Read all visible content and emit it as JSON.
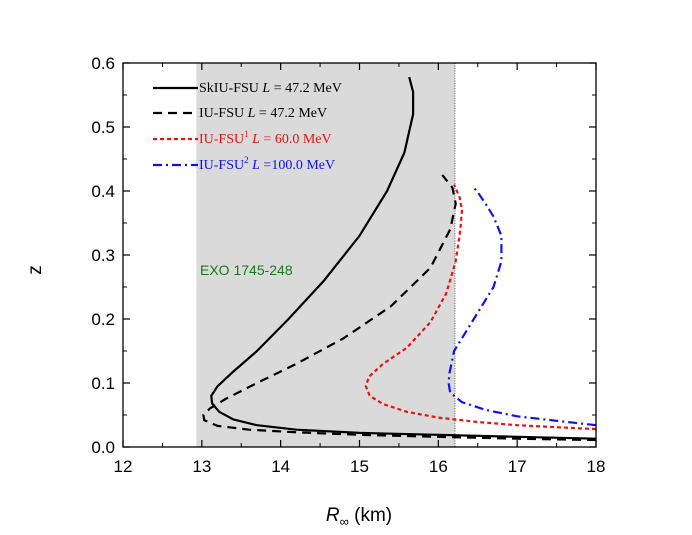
{
  "chart_data": {
    "type": "line",
    "title": "",
    "xlabel": "R",
    "xlabel_subscript": "∞",
    "xlabel_unit": " (km)",
    "ylabel": "z",
    "xlim": [
      12,
      18
    ],
    "ylim": [
      0.0,
      0.6
    ],
    "xticks": [
      "12",
      "13",
      "14",
      "15",
      "16",
      "17",
      "18"
    ],
    "yticks": [
      "0.0",
      "0.1",
      "0.2",
      "0.3",
      "0.4",
      "0.5",
      "0.6"
    ],
    "grid": false,
    "legend_position": "top-left",
    "shaded_region": {
      "x": [
        12.93,
        16.21
      ],
      "label": "EXO 1745-248",
      "label_color": "#1a7a1a"
    },
    "series": [
      {
        "name": "SkIU-FSU",
        "label_prefix": "SkIU-FSU",
        "label_L": "L",
        "label_value": " = 47.2  MeV",
        "color": "#000000",
        "style": "solid",
        "points": [
          [
            18.0,
            0.013
          ],
          [
            17.0,
            0.016
          ],
          [
            16.0,
            0.019
          ],
          [
            15.0,
            0.022
          ],
          [
            14.2,
            0.027
          ],
          [
            13.7,
            0.034
          ],
          [
            13.4,
            0.043
          ],
          [
            13.22,
            0.055
          ],
          [
            13.13,
            0.068
          ],
          [
            13.12,
            0.08
          ],
          [
            13.2,
            0.095
          ],
          [
            13.4,
            0.118
          ],
          [
            13.7,
            0.15
          ],
          [
            14.1,
            0.2
          ],
          [
            14.55,
            0.26
          ],
          [
            15.0,
            0.33
          ],
          [
            15.35,
            0.4
          ],
          [
            15.57,
            0.46
          ],
          [
            15.68,
            0.52
          ],
          [
            15.68,
            0.555
          ],
          [
            15.63,
            0.578
          ]
        ]
      },
      {
        "name": "IU-FSU",
        "label_prefix": "IU-FSU",
        "label_L": "L",
        "label_value": " = 47.2  MeV",
        "color": "#000000",
        "style": "dashed",
        "points": [
          [
            18.0,
            0.011
          ],
          [
            17.0,
            0.013
          ],
          [
            16.0,
            0.016
          ],
          [
            15.0,
            0.019
          ],
          [
            14.2,
            0.023
          ],
          [
            13.6,
            0.027
          ],
          [
            13.2,
            0.033
          ],
          [
            13.03,
            0.042
          ],
          [
            13.02,
            0.05
          ],
          [
            13.1,
            0.06
          ],
          [
            13.3,
            0.075
          ],
          [
            13.7,
            0.1
          ],
          [
            14.2,
            0.13
          ],
          [
            14.8,
            0.17
          ],
          [
            15.4,
            0.22
          ],
          [
            15.9,
            0.28
          ],
          [
            16.15,
            0.34
          ],
          [
            16.22,
            0.38
          ],
          [
            16.18,
            0.405
          ],
          [
            16.05,
            0.425
          ]
        ]
      },
      {
        "name": "IU-FSU1",
        "label_prefix": "IU-FSU",
        "label_sup": "1",
        "label_L": "L",
        "label_value": " = 60.0  MeV",
        "color": "#ee1111",
        "style": "dotted",
        "points": [
          [
            18.0,
            0.028
          ],
          [
            17.5,
            0.031
          ],
          [
            17.0,
            0.034
          ],
          [
            16.5,
            0.039
          ],
          [
            16.0,
            0.046
          ],
          [
            15.6,
            0.055
          ],
          [
            15.3,
            0.067
          ],
          [
            15.13,
            0.08
          ],
          [
            15.08,
            0.095
          ],
          [
            15.12,
            0.11
          ],
          [
            15.3,
            0.13
          ],
          [
            15.6,
            0.155
          ],
          [
            15.9,
            0.195
          ],
          [
            16.1,
            0.24
          ],
          [
            16.22,
            0.29
          ],
          [
            16.28,
            0.34
          ],
          [
            16.3,
            0.37
          ],
          [
            16.27,
            0.39
          ],
          [
            16.2,
            0.41
          ]
        ]
      },
      {
        "name": "IU-FSU2",
        "label_prefix": "IU-FSU",
        "label_sup": "2",
        "label_L": "L",
        "label_value": " =100.0 MeV",
        "color": "#1111ee",
        "style": "dashdot",
        "points": [
          [
            18.0,
            0.034
          ],
          [
            17.5,
            0.041
          ],
          [
            17.0,
            0.048
          ],
          [
            16.6,
            0.058
          ],
          [
            16.3,
            0.07
          ],
          [
            16.15,
            0.085
          ],
          [
            16.13,
            0.1
          ],
          [
            16.14,
            0.115
          ],
          [
            16.2,
            0.15
          ],
          [
            16.45,
            0.2
          ],
          [
            16.7,
            0.25
          ],
          [
            16.8,
            0.29
          ],
          [
            16.8,
            0.33
          ],
          [
            16.7,
            0.36
          ],
          [
            16.6,
            0.38
          ],
          [
            16.5,
            0.398
          ],
          [
            16.45,
            0.405
          ]
        ]
      }
    ]
  }
}
